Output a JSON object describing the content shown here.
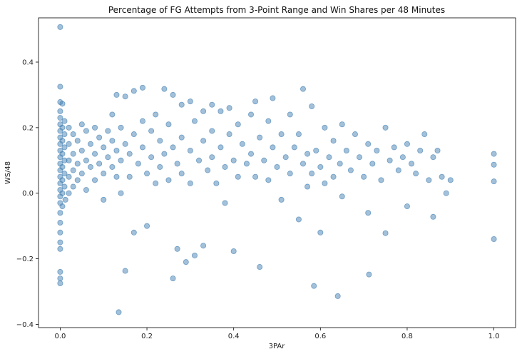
{
  "chart_data": {
    "type": "scatter",
    "title": "Percentage of FG Attempts from 3-Point Range and Win Shares per 48 Minutes",
    "xlabel": "3PAr",
    "ylabel": "WS/48",
    "xlim": [
      -0.05,
      1.05
    ],
    "ylim": [
      -0.41,
      0.535
    ],
    "xticks": [
      0.0,
      0.2,
      0.4,
      0.6,
      0.8,
      1.0
    ],
    "xtick_labels": [
      "0.0",
      "0.2",
      "0.4",
      "0.6",
      "0.8",
      "1.0"
    ],
    "yticks": [
      -0.4,
      -0.2,
      0.0,
      0.2,
      0.4
    ],
    "ytick_labels": [
      "−0.4",
      "−0.2",
      "0.0",
      "0.2",
      "0.4"
    ],
    "grid": false,
    "marker_color": "#4682b4",
    "marker_alpha": 0.5,
    "points": [
      [
        0.0,
        0.507
      ],
      [
        0.0,
        0.325
      ],
      [
        0.0,
        0.278
      ],
      [
        0.005,
        0.273
      ],
      [
        0.0,
        0.25
      ],
      [
        0.0,
        0.23
      ],
      [
        0.0,
        0.21
      ],
      [
        0.0,
        0.19
      ],
      [
        0.0,
        0.17
      ],
      [
        0.0,
        0.15
      ],
      [
        0.0,
        0.13
      ],
      [
        0.0,
        0.11
      ],
      [
        0.0,
        0.09
      ],
      [
        0.0,
        0.07
      ],
      [
        0.0,
        0.05
      ],
      [
        0.0,
        0.03
      ],
      [
        0.0,
        0.01
      ],
      [
        0.0,
        -0.01
      ],
      [
        0.0,
        -0.03
      ],
      [
        0.0,
        -0.06
      ],
      [
        0.0,
        -0.09
      ],
      [
        0.0,
        -0.12
      ],
      [
        0.0,
        -0.15
      ],
      [
        0.0,
        -0.17
      ],
      [
        0.0,
        -0.24
      ],
      [
        0.0,
        -0.26
      ],
      [
        0.0,
        -0.275
      ],
      [
        0.005,
        0.2
      ],
      [
        0.005,
        0.16
      ],
      [
        0.005,
        0.12
      ],
      [
        0.005,
        0.08
      ],
      [
        0.005,
        0.04
      ],
      [
        0.005,
        0.0
      ],
      [
        0.005,
        -0.04
      ],
      [
        0.01,
        0.22
      ],
      [
        0.01,
        0.18
      ],
      [
        0.01,
        0.14
      ],
      [
        0.01,
        0.1
      ],
      [
        0.01,
        0.06
      ],
      [
        0.01,
        0.02
      ],
      [
        0.012,
        -0.02
      ],
      [
        0.02,
        0.2
      ],
      [
        0.02,
        0.15
      ],
      [
        0.02,
        0.1
      ],
      [
        0.02,
        0.05
      ],
      [
        0.02,
        0.0
      ],
      [
        0.03,
        0.18
      ],
      [
        0.03,
        0.12
      ],
      [
        0.03,
        0.07
      ],
      [
        0.03,
        0.02
      ],
      [
        0.04,
        0.16
      ],
      [
        0.04,
        0.09
      ],
      [
        0.04,
        0.04
      ],
      [
        0.05,
        0.21
      ],
      [
        0.05,
        0.13
      ],
      [
        0.05,
        0.06
      ],
      [
        0.06,
        0.19
      ],
      [
        0.06,
        0.1
      ],
      [
        0.06,
        0.01
      ],
      [
        0.07,
        0.15
      ],
      [
        0.07,
        0.08
      ],
      [
        0.08,
        0.2
      ],
      [
        0.08,
        0.12
      ],
      [
        0.08,
        0.04
      ],
      [
        0.09,
        0.17
      ],
      [
        0.09,
        0.09
      ],
      [
        0.1,
        0.14
      ],
      [
        0.1,
        0.06
      ],
      [
        0.1,
        -0.02
      ],
      [
        0.11,
        0.19
      ],
      [
        0.11,
        0.11
      ],
      [
        0.12,
        0.24
      ],
      [
        0.12,
        0.16
      ],
      [
        0.12,
        0.08
      ],
      [
        0.13,
        0.3
      ],
      [
        0.13,
        0.13
      ],
      [
        0.13,
        0.05
      ],
      [
        0.135,
        -0.363
      ],
      [
        0.14,
        0.2
      ],
      [
        0.14,
        0.1
      ],
      [
        0.14,
        0.0
      ],
      [
        0.15,
        0.295
      ],
      [
        0.15,
        0.15
      ],
      [
        0.15,
        -0.237
      ],
      [
        0.16,
        0.12
      ],
      [
        0.16,
        0.05
      ],
      [
        0.17,
        0.312
      ],
      [
        0.17,
        0.18
      ],
      [
        0.17,
        -0.12
      ],
      [
        0.18,
        0.09
      ],
      [
        0.19,
        0.322
      ],
      [
        0.19,
        0.22
      ],
      [
        0.19,
        0.14
      ],
      [
        0.2,
        0.06
      ],
      [
        0.2,
        -0.1
      ],
      [
        0.21,
        0.19
      ],
      [
        0.21,
        0.11
      ],
      [
        0.22,
        0.24
      ],
      [
        0.22,
        0.03
      ],
      [
        0.23,
        0.16
      ],
      [
        0.23,
        0.08
      ],
      [
        0.24,
        0.318
      ],
      [
        0.24,
        0.12
      ],
      [
        0.25,
        0.21
      ],
      [
        0.25,
        0.04
      ],
      [
        0.26,
        0.3
      ],
      [
        0.26,
        0.14
      ],
      [
        0.26,
        -0.26
      ],
      [
        0.27,
        0.09
      ],
      [
        0.27,
        -0.17
      ],
      [
        0.28,
        0.27
      ],
      [
        0.28,
        0.17
      ],
      [
        0.28,
        0.06
      ],
      [
        0.29,
        -0.21
      ],
      [
        0.3,
        0.28
      ],
      [
        0.3,
        0.13
      ],
      [
        0.3,
        0.03
      ],
      [
        0.31,
        0.22
      ],
      [
        0.31,
        -0.19
      ],
      [
        0.32,
        0.1
      ],
      [
        0.33,
        0.25
      ],
      [
        0.33,
        0.16
      ],
      [
        0.33,
        -0.16
      ],
      [
        0.34,
        0.07
      ],
      [
        0.35,
        0.27
      ],
      [
        0.35,
        0.19
      ],
      [
        0.35,
        0.11
      ],
      [
        0.36,
        0.03
      ],
      [
        0.37,
        0.25
      ],
      [
        0.37,
        0.14
      ],
      [
        0.38,
        0.08
      ],
      [
        0.38,
        -0.03
      ],
      [
        0.39,
        0.26
      ],
      [
        0.39,
        0.18
      ],
      [
        0.4,
        0.1
      ],
      [
        0.4,
        -0.177
      ],
      [
        0.41,
        0.21
      ],
      [
        0.41,
        0.05
      ],
      [
        0.42,
        0.15
      ],
      [
        0.43,
        0.09
      ],
      [
        0.44,
        0.24
      ],
      [
        0.44,
        0.12
      ],
      [
        0.45,
        0.28
      ],
      [
        0.45,
        0.05
      ],
      [
        0.46,
        0.17
      ],
      [
        0.46,
        -0.225
      ],
      [
        0.47,
        0.1
      ],
      [
        0.48,
        0.22
      ],
      [
        0.48,
        0.04
      ],
      [
        0.49,
        0.29
      ],
      [
        0.49,
        0.14
      ],
      [
        0.5,
        0.08
      ],
      [
        0.51,
        0.18
      ],
      [
        0.51,
        -0.02
      ],
      [
        0.52,
        0.11
      ],
      [
        0.53,
        0.24
      ],
      [
        0.53,
        0.06
      ],
      [
        0.54,
        0.14
      ],
      [
        0.55,
        0.18
      ],
      [
        0.55,
        -0.08
      ],
      [
        0.56,
        0.318
      ],
      [
        0.56,
        0.09
      ],
      [
        0.57,
        0.12
      ],
      [
        0.57,
        0.02
      ],
      [
        0.58,
        0.265
      ],
      [
        0.58,
        0.06
      ],
      [
        0.585,
        -0.283
      ],
      [
        0.59,
        0.13
      ],
      [
        0.6,
        0.08
      ],
      [
        0.6,
        -0.12
      ],
      [
        0.61,
        0.2
      ],
      [
        0.61,
        0.03
      ],
      [
        0.62,
        0.11
      ],
      [
        0.63,
        0.16
      ],
      [
        0.63,
        0.05
      ],
      [
        0.64,
        -0.314
      ],
      [
        0.645,
        0.09
      ],
      [
        0.65,
        0.21
      ],
      [
        0.65,
        -0.01
      ],
      [
        0.66,
        0.13
      ],
      [
        0.67,
        0.07
      ],
      [
        0.68,
        0.18
      ],
      [
        0.69,
        0.11
      ],
      [
        0.7,
        0.05
      ],
      [
        0.71,
        0.15
      ],
      [
        0.71,
        -0.06
      ],
      [
        0.712,
        -0.248
      ],
      [
        0.72,
        0.09
      ],
      [
        0.73,
        0.13
      ],
      [
        0.74,
        0.04
      ],
      [
        0.75,
        0.2
      ],
      [
        0.75,
        -0.122
      ],
      [
        0.76,
        0.1
      ],
      [
        0.77,
        0.14
      ],
      [
        0.78,
        0.07
      ],
      [
        0.79,
        0.11
      ],
      [
        0.8,
        -0.04
      ],
      [
        0.8,
        0.15
      ],
      [
        0.81,
        0.09
      ],
      [
        0.82,
        0.06
      ],
      [
        0.83,
        0.13
      ],
      [
        0.84,
        0.18
      ],
      [
        0.85,
        0.04
      ],
      [
        0.86,
        -0.072
      ],
      [
        0.86,
        0.11
      ],
      [
        0.87,
        0.13
      ],
      [
        0.88,
        0.05
      ],
      [
        0.89,
        0.0
      ],
      [
        0.9,
        0.04
      ],
      [
        1.0,
        0.12
      ],
      [
        1.0,
        0.087
      ],
      [
        1.0,
        0.036
      ],
      [
        1.0,
        -0.14
      ]
    ]
  }
}
